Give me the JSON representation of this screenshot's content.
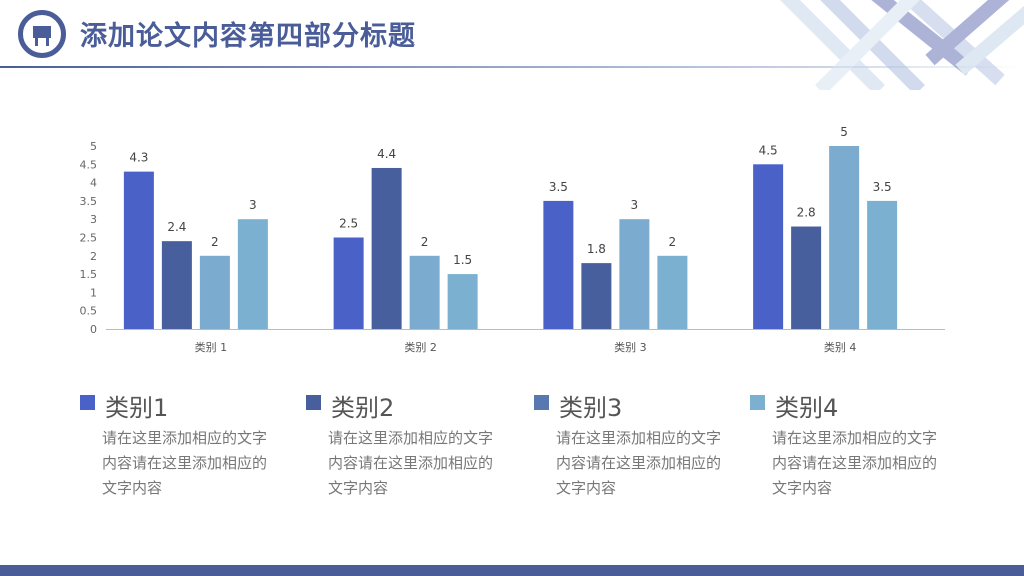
{
  "header": {
    "title": "添加论文内容第四部分标题",
    "icon": "blackboard-icon"
  },
  "colors": {
    "primary": "#4a5d98",
    "series": [
      "#4a62c8",
      "#485f9e",
      "#7bacd0",
      "#7bb0d0"
    ]
  },
  "chart_data": {
    "type": "bar",
    "categories": [
      "类别 1",
      "类别 2",
      "类别 3",
      "类别 4"
    ],
    "series": [
      {
        "values": [
          4.3,
          2.5,
          3.5,
          4.5
        ]
      },
      {
        "values": [
          2.4,
          4.4,
          1.8,
          2.8
        ]
      },
      {
        "values": [
          2,
          2,
          3,
          5
        ]
      },
      {
        "values": [
          3,
          1.5,
          2,
          3.5
        ]
      }
    ],
    "yticks": [
      "0",
      "0.5",
      "1",
      "1.5",
      "2",
      "2.5",
      "3",
      "3.5",
      "4",
      "4.5",
      "5"
    ],
    "ylim": [
      0,
      5
    ],
    "grid": false,
    "data_labels": true
  },
  "legend": [
    {
      "name": "类别1",
      "color": "#4a62c8",
      "desc": "请在这里添加相应的文字内容请在这里添加相应的文字内容"
    },
    {
      "name": "类别2",
      "color": "#485f9e",
      "desc": "请在这里添加相应的文字内容请在这里添加相应的文字内容"
    },
    {
      "name": "类别3",
      "color": "#5878b0",
      "desc": "请在这里添加相应的文字内容请在这里添加相应的文字内容"
    },
    {
      "name": "类别4",
      "color": "#7bb0d0",
      "desc": "请在这里添加相应的文字内容请在这里添加相应的文字内容"
    }
  ]
}
